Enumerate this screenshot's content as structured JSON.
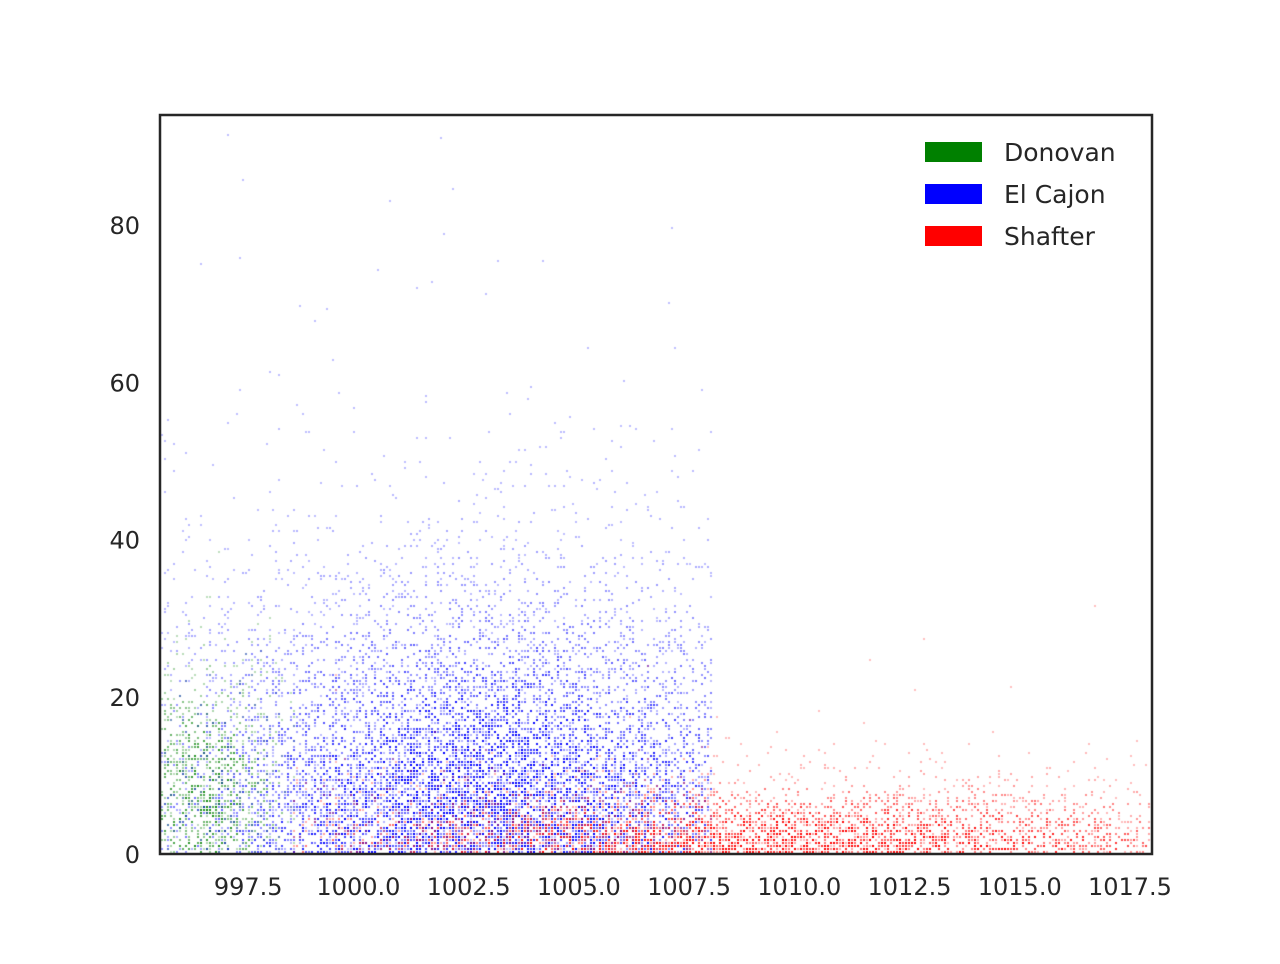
{
  "chart_data": {
    "type": "heatmap",
    "title": "",
    "xlabel": "",
    "ylabel": "",
    "xlim": [
      995.5,
      1018.0
    ],
    "ylim": [
      0,
      94
    ],
    "x_ticks": [
      997.5,
      1000.0,
      1002.5,
      1005.0,
      1007.5,
      1010.0,
      1012.5,
      1015.0,
      1017.5
    ],
    "x_tick_labels": [
      "997.5",
      "1000.0",
      "1002.5",
      "1005.0",
      "1007.5",
      "1010.0",
      "1012.5",
      "1015.0",
      "1017.5"
    ],
    "y_ticks": [
      0,
      20,
      40,
      60,
      80
    ],
    "y_tick_labels": [
      "0",
      "20",
      "40",
      "60",
      "80"
    ],
    "grid": false,
    "legend_position": "top-right",
    "series": [
      {
        "name": "Donovan",
        "color": "#008000",
        "x_range": [
          995.5,
          998.5
        ],
        "x_peak": 996.5,
        "y_peak": 10,
        "y_spread": 12,
        "density": 0.35
      },
      {
        "name": "El Cajon",
        "color": "#0000ff",
        "x_range": [
          995.5,
          1008.0
        ],
        "x_peak": 1003.0,
        "y_peak": 5,
        "y_spread": 25,
        "density": 0.55
      },
      {
        "name": "Shafter",
        "color": "#ff0000",
        "x_range": [
          998.5,
          1018.0
        ],
        "x_peak": 1009.5,
        "y_peak": 1,
        "y_spread": 7,
        "density": 0.55
      }
    ]
  }
}
